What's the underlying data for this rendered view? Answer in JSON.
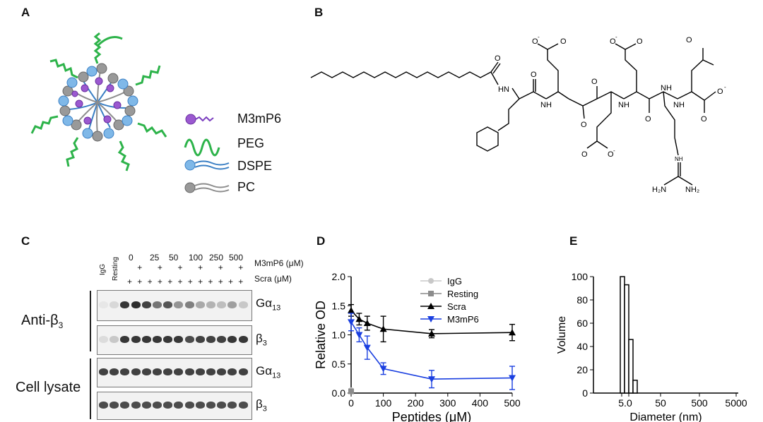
{
  "panel_labels": {
    "a": "A",
    "b": "B",
    "c": "C",
    "d": "D",
    "e": "E"
  },
  "panel_a": {
    "legend": [
      {
        "label": "M3mP6",
        "color": "#7b3fbf"
      },
      {
        "label": "PEG",
        "color": "#2db34a"
      },
      {
        "label": "DSPE",
        "color": "#3a7fc4"
      },
      {
        "label": "PC",
        "color": "#8c8c8c"
      }
    ]
  },
  "panel_b": {
    "atoms": {
      "o_minus": "O",
      "minus": "-",
      "o": "O",
      "nh": "NH",
      "h": "H",
      "n": "N",
      "h2n": "H₂N",
      "nh2": "NH₂"
    }
  },
  "panel_c": {
    "lane_labels": [
      "IgG",
      "Resting"
    ],
    "concentrations": [
      "0",
      "25",
      "50",
      "100",
      "250",
      "500"
    ],
    "row_m3mp6_label": "M3mP6 (μM)",
    "row_scra_label": "Scra (μM)",
    "plus": "+",
    "group_labels": {
      "anti_b3": "Anti-β",
      "anti_b3_sub": "3",
      "lysate": "Cell lysate"
    },
    "blot_labels": {
      "g13": "Gα",
      "g13_sub": "13",
      "b3": "β",
      "b3_sub": "3"
    }
  },
  "chart_data": [
    {
      "type": "line",
      "xlabel": "Peptides (μM)",
      "ylabel": "Relative OD",
      "xlim": [
        0,
        500
      ],
      "ylim": [
        0,
        2.0
      ],
      "xticks": [
        "0",
        "100",
        "200",
        "300",
        "400",
        "500"
      ],
      "yticks": [
        "0.0",
        "0.5",
        "1.0",
        "1.5",
        "2.0"
      ],
      "legend_position": "top-right",
      "series": [
        {
          "name": "IgG",
          "color": "#c8c8c8",
          "marker": "circle",
          "x": [
            0
          ],
          "y": [
            0.05
          ],
          "err": [
            0
          ]
        },
        {
          "name": "Resting",
          "color": "#8c8c8c",
          "marker": "square",
          "x": [
            0
          ],
          "y": [
            0.03
          ],
          "err": [
            0
          ]
        },
        {
          "name": "Scra",
          "color": "#000000",
          "marker": "triangle-up",
          "x": [
            0,
            25,
            50,
            100,
            250,
            500
          ],
          "y": [
            1.42,
            1.27,
            1.2,
            1.1,
            1.02,
            1.04
          ],
          "err": [
            0.1,
            0.1,
            0.12,
            0.22,
            0.07,
            0.14
          ]
        },
        {
          "name": "M3mP6",
          "color": "#1a3fe0",
          "marker": "triangle-down",
          "x": [
            0,
            25,
            50,
            100,
            250,
            500
          ],
          "y": [
            1.22,
            1.0,
            0.78,
            0.42,
            0.24,
            0.26
          ],
          "err": [
            0.15,
            0.12,
            0.2,
            0.1,
            0.15,
            0.2
          ]
        }
      ]
    },
    {
      "type": "bar",
      "xlabel": "Diameter (nm)",
      "ylabel": "Volume",
      "ylim": [
        0,
        100
      ],
      "xticks": [
        "5.0",
        "5.0",
        "50",
        "500",
        "5000"
      ],
      "yticks": [
        "0",
        "20",
        "40",
        "60",
        "80",
        "100"
      ],
      "categories": [
        "4.5",
        "5.1",
        "5.8",
        "6.5"
      ],
      "values": [
        100,
        93,
        46,
        11
      ]
    }
  ]
}
